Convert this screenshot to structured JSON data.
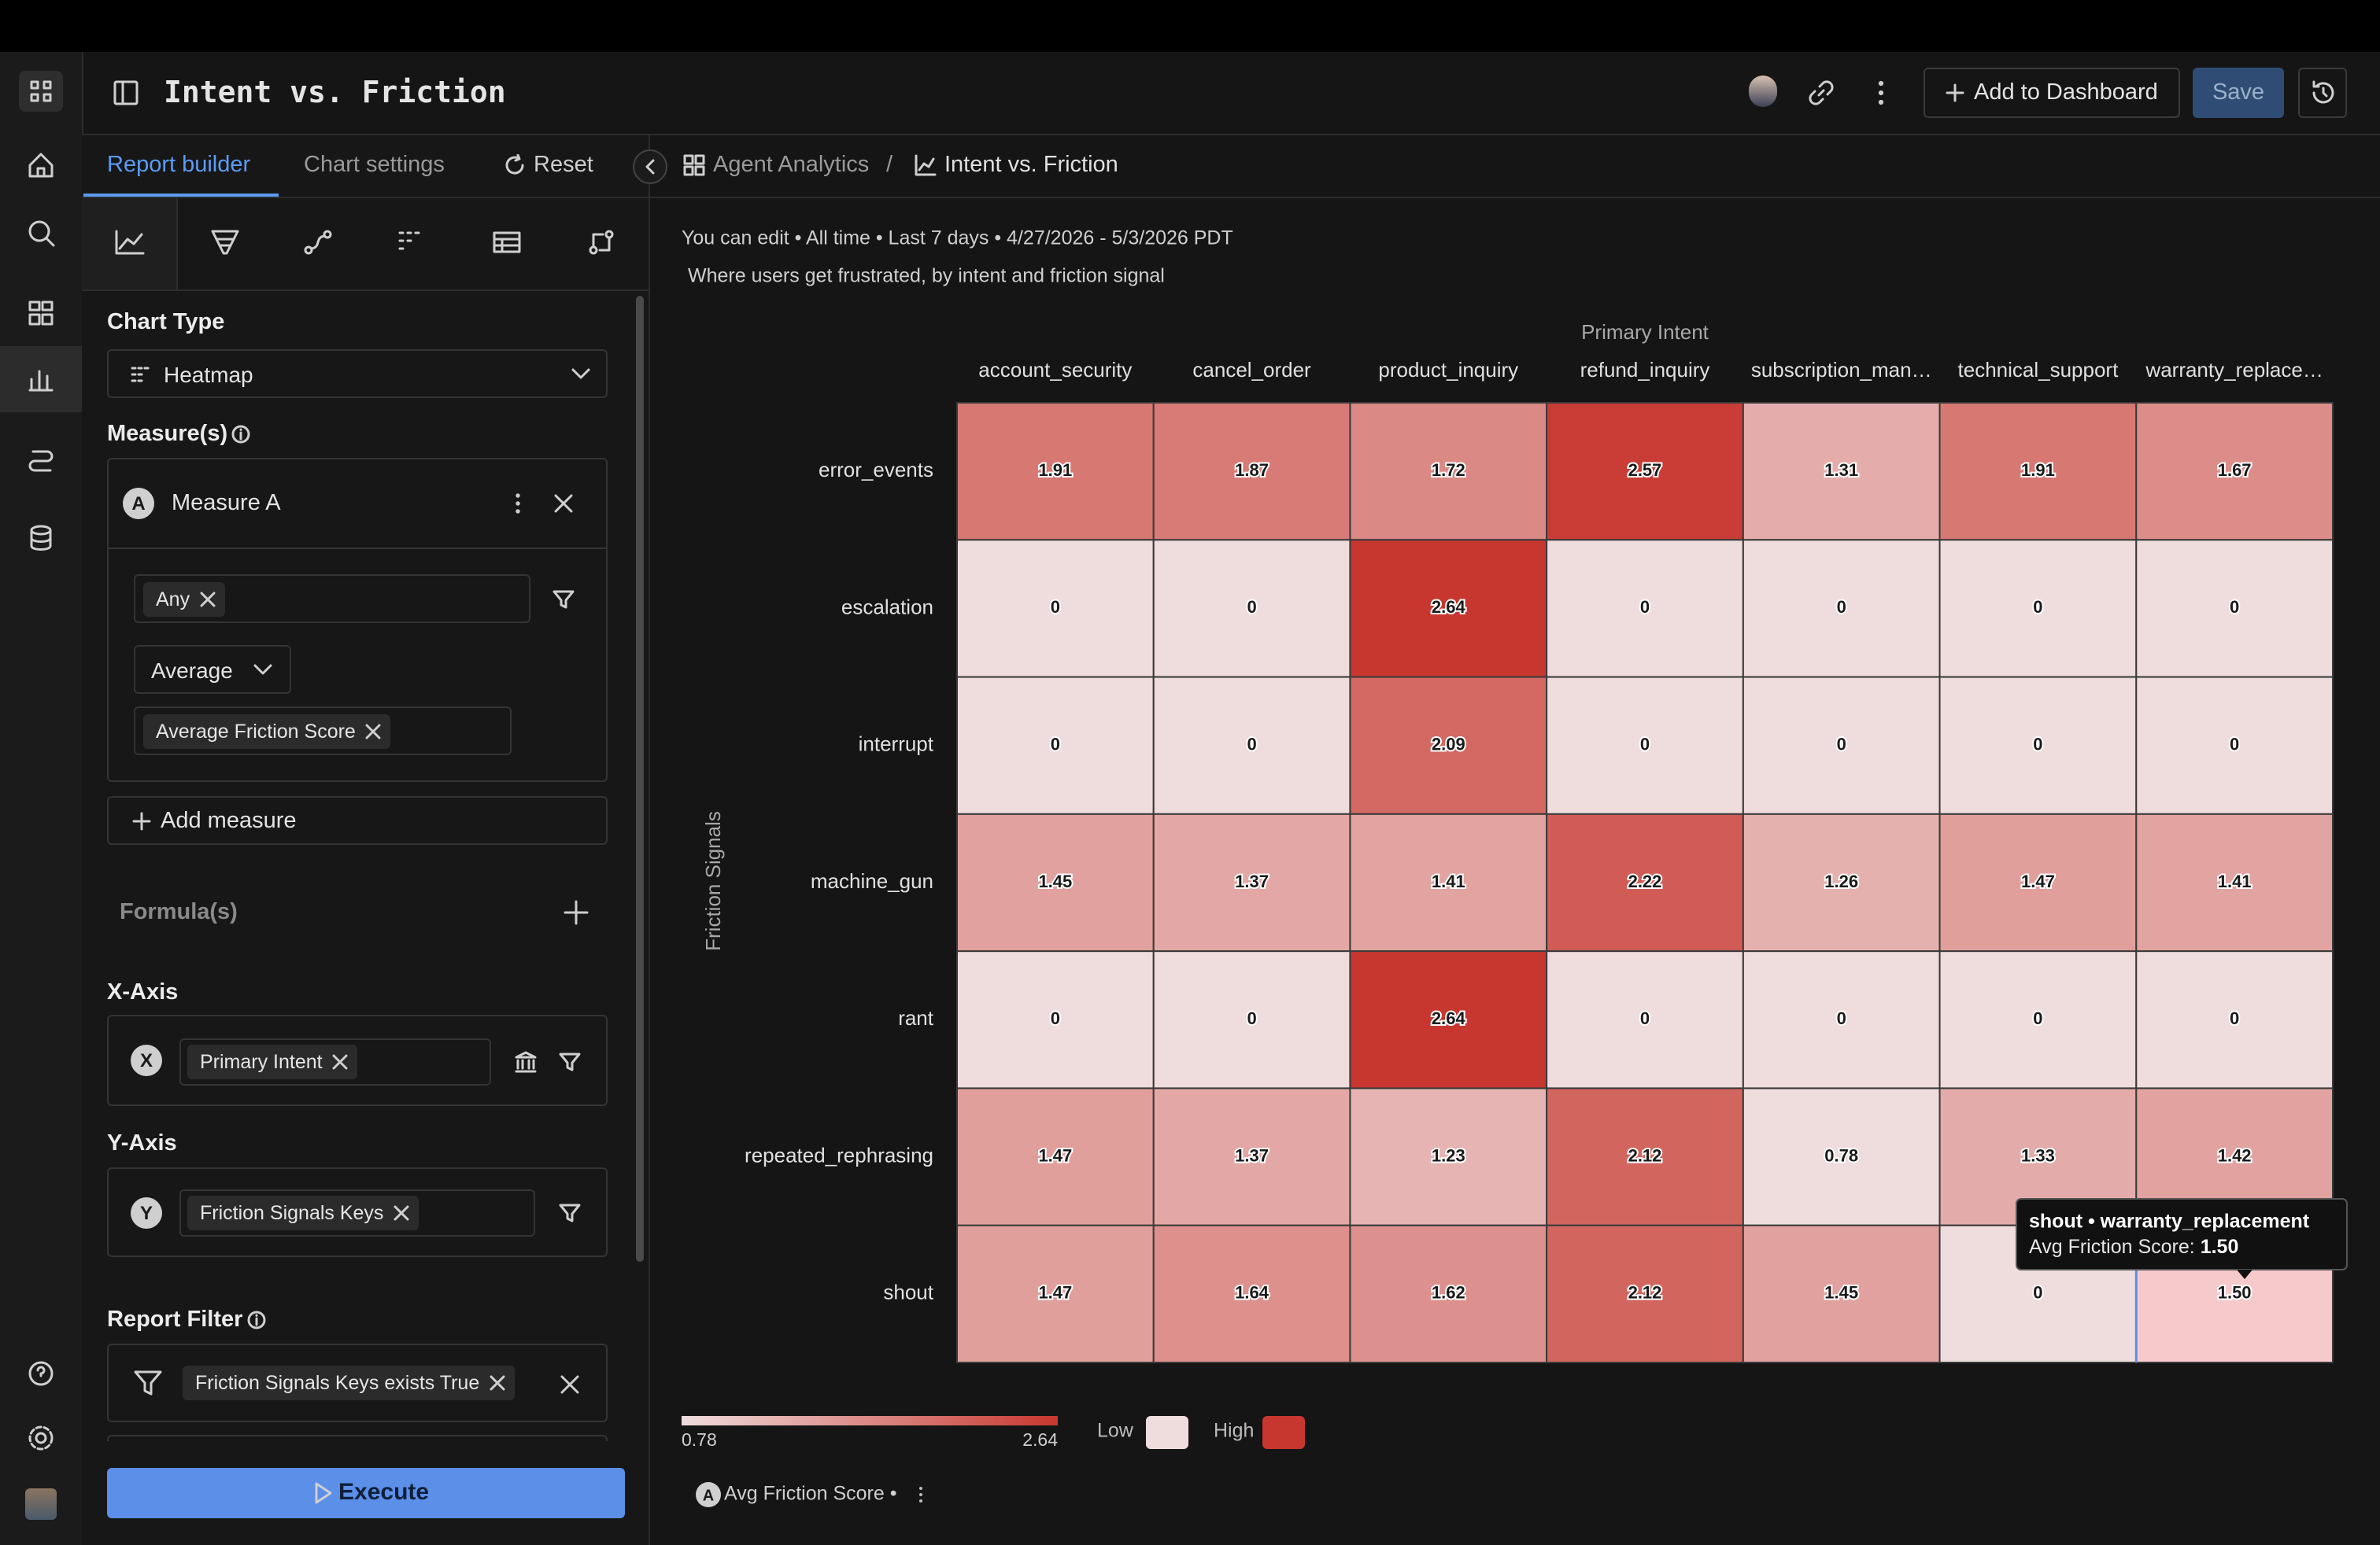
{
  "header": {
    "title": "Intent vs. Friction",
    "add_to_dashboard": "Add to Dashboard",
    "save": "Save"
  },
  "builder": {
    "tabs": [
      "Report builder",
      "Chart settings"
    ],
    "reset": "Reset",
    "chart_type_label": "Chart Type",
    "chart_type": "Heatmap",
    "measures_label": "Measure(s)",
    "measure": {
      "badge": "A",
      "name": "Measure A",
      "filter": "Any",
      "aggregation": "Average",
      "field": "Average Friction Score"
    },
    "add_measure": "Add measure",
    "formulas_label": "Formula(s)",
    "x_axis": {
      "label": "X-Axis",
      "badge": "X",
      "field": "Primary Intent"
    },
    "y_axis": {
      "label": "Y-Axis",
      "badge": "Y",
      "field": "Friction Signals Keys"
    },
    "report_filter": {
      "label": "Report Filter",
      "filter": "Friction Signals Keys exists True"
    },
    "execute": "Execute"
  },
  "breadcrumb": {
    "parent": "Agent Analytics",
    "separator": "/",
    "current": "Intent vs. Friction"
  },
  "chart_data": {
    "type": "heatmap",
    "subtitle": "You can edit • All time • Last 7 days • 4/27/2026 - 5/3/2026 PDT",
    "description": "Where users get frustrated, by intent and friction signal",
    "x_label": "Primary Intent",
    "y_label": "Friction Signals",
    "x_categories": [
      "account_security",
      "cancel_order",
      "product_inquiry",
      "refund_inquiry",
      "subscription_man…",
      "technical_support",
      "warranty_replace…"
    ],
    "y_categories": [
      "error_events",
      "escalation",
      "interrupt",
      "machine_gun",
      "rant",
      "repeated_rephrasing",
      "shout"
    ],
    "values": [
      [
        1.91,
        1.87,
        1.72,
        2.57,
        1.31,
        1.91,
        1.67
      ],
      [
        0,
        0,
        2.64,
        0,
        0,
        0,
        0
      ],
      [
        0,
        0,
        2.09,
        0,
        0,
        0,
        0
      ],
      [
        1.45,
        1.37,
        1.41,
        2.22,
        1.26,
        1.47,
        1.41
      ],
      [
        0,
        0,
        2.64,
        0,
        0,
        0,
        0
      ],
      [
        1.47,
        1.37,
        1.23,
        2.12,
        0.78,
        1.33,
        1.42
      ],
      [
        1.47,
        1.64,
        1.62,
        2.12,
        1.45,
        0,
        1.5
      ]
    ],
    "value_labels": [
      [
        "1.91",
        "1.87",
        "1.72",
        "2.57",
        "1.31",
        "1.91",
        "1.67"
      ],
      [
        "0",
        "0",
        "2.64",
        "0",
        "0",
        "0",
        "0"
      ],
      [
        "0",
        "0",
        "2.09",
        "0",
        "0",
        "0",
        "0"
      ],
      [
        "1.45",
        "1.37",
        "1.41",
        "2.22",
        "1.26",
        "1.47",
        "1.41"
      ],
      [
        "0",
        "0",
        "2.64",
        "0",
        "0",
        "0",
        "0"
      ],
      [
        "1.47",
        "1.37",
        "1.23",
        "2.12",
        "0.78",
        "1.33",
        "1.42"
      ],
      [
        "1.47",
        "1.64",
        "1.62",
        "2.12",
        "1.45",
        "0",
        "1.50"
      ]
    ],
    "colorbar_range": [
      0.78,
      2.64
    ],
    "colorbar_ticks": [
      0.78,
      2.64
    ],
    "legend": [
      {
        "name": "Low",
        "color": "#efdcdc"
      },
      {
        "name": "High",
        "color": "#c8372f"
      }
    ],
    "tooltip": {
      "title": "shout • warranty_replacement",
      "label": "Avg Friction Score:",
      "value": 1.5,
      "value_label": "1.50"
    },
    "footer_measure": {
      "badge": "A",
      "name": "Avg Friction Score •"
    }
  }
}
